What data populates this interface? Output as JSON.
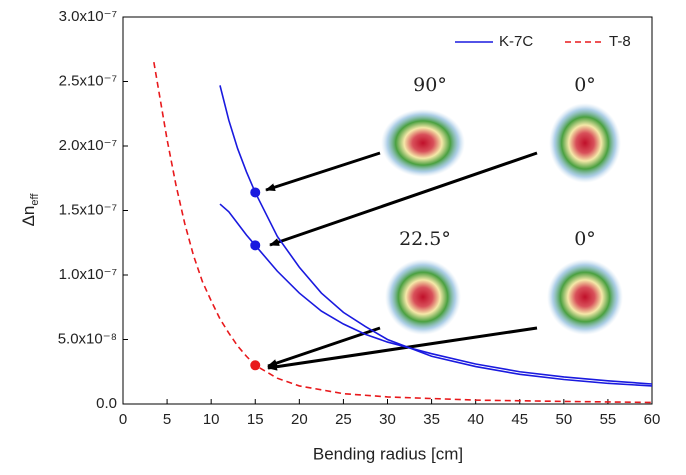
{
  "chart_data": {
    "type": "line",
    "xlabel": "Bending radius [cm]",
    "ylabel": {
      "main": "Δn",
      "subscript": "eff"
    },
    "xlim": [
      0,
      60
    ],
    "xticks": [
      0,
      5,
      10,
      15,
      20,
      25,
      30,
      35,
      40,
      45,
      50,
      55,
      60
    ],
    "ylim": [
      0,
      3e-07
    ],
    "yticks": [
      {
        "value": 0,
        "label": "0.0"
      },
      {
        "value": 5e-08,
        "label": "5.0x10⁻⁸"
      },
      {
        "value": 1e-07,
        "label": "1.0x10⁻⁷"
      },
      {
        "value": 1.5e-07,
        "label": "1.5x10⁻⁷"
      },
      {
        "value": 2e-07,
        "label": "2.0x10⁻⁷"
      },
      {
        "value": 2.5e-07,
        "label": "2.5x10⁻⁷"
      },
      {
        "value": 3e-07,
        "label": "3.0x10⁻⁷"
      }
    ],
    "legend_position": "upper right",
    "series": [
      {
        "name": "K-7C",
        "color": "#1a1adf",
        "style": "solid",
        "legend": true,
        "x": [
          11,
          12,
          13,
          14,
          15,
          17.5,
          20,
          22.5,
          25,
          27.5,
          30,
          35,
          40,
          45,
          50,
          55,
          60
        ],
        "values": [
          2.47e-07,
          2.2e-07,
          1.98e-07,
          1.8e-07,
          1.64e-07,
          1.3e-07,
          1.06e-07,
          8.6e-08,
          7.1e-08,
          6e-08,
          5e-08,
          3.7e-08,
          2.9e-08,
          2.3e-08,
          1.9e-08,
          1.6e-08,
          1.4e-08
        ]
      },
      {
        "name": "K-7C",
        "color": "#1a1adf",
        "style": "solid",
        "legend": false,
        "x": [
          11,
          12,
          13,
          14,
          15,
          17.5,
          20,
          22.5,
          25,
          27.5,
          30,
          35,
          40,
          45,
          50,
          55,
          60
        ],
        "values": [
          1.55e-07,
          1.49e-07,
          1.4e-07,
          1.31e-07,
          1.23e-07,
          1.03e-07,
          8.6e-08,
          7.2e-08,
          6.2e-08,
          5.4e-08,
          4.8e-08,
          3.9e-08,
          3.1e-08,
          2.5e-08,
          2.1e-08,
          1.8e-08,
          1.55e-08
        ]
      },
      {
        "name": "T-8",
        "color": "#e8191c",
        "style": "dashed",
        "legend": true,
        "x": [
          3.5,
          5,
          6,
          7,
          8,
          9,
          10,
          11,
          12,
          13,
          14,
          15,
          17.5,
          20,
          25,
          30,
          40,
          50,
          60
        ],
        "values": [
          2.65e-07,
          2.05e-07,
          1.7e-07,
          1.4e-07,
          1.15e-07,
          9.5e-08,
          8e-08,
          6.6e-08,
          5.5e-08,
          4.5e-08,
          3.7e-08,
          3e-08,
          2e-08,
          1.4e-08,
          8e-09,
          5.5e-09,
          3e-09,
          2e-09,
          1.2e-09
        ]
      }
    ],
    "points": [
      {
        "x": 15,
        "y": 1.64e-07,
        "color": "#1a1adf"
      },
      {
        "x": 15,
        "y": 1.23e-07,
        "color": "#1a1adf"
      },
      {
        "x": 15,
        "y": 3e-08,
        "color": "#e8191c"
      }
    ],
    "annotations": [
      "90°",
      "0°",
      "22.5°",
      "0°"
    ]
  }
}
